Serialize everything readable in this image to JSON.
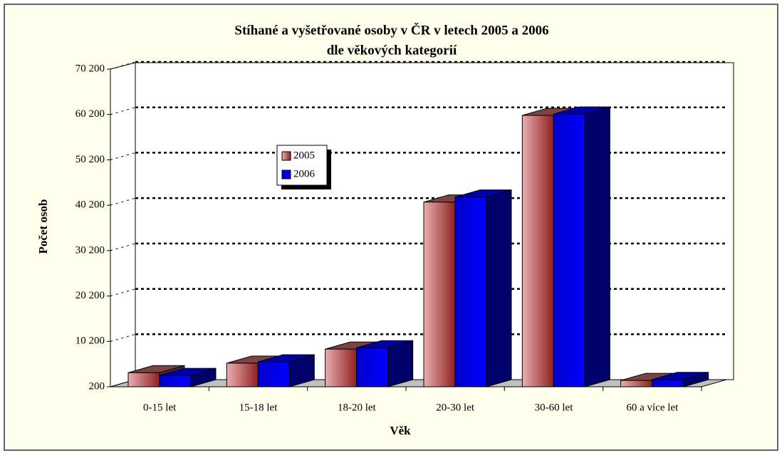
{
  "chart_data": {
    "type": "bar3d",
    "title": [
      "Stíhané a vyšetřované osoby v ČR v letech 2005 a 2006",
      "dle věkových kategorií"
    ],
    "ylabel": "Počet osob",
    "xlabel": "Věk",
    "categories": [
      "0-15 let",
      "15-18 let",
      "18-20 let",
      "20-30 let",
      "30-60 let",
      "60 a více let"
    ],
    "series": [
      {
        "name": "2005",
        "color": "#b06060",
        "values": [
          3300,
          5400,
          8500,
          40900,
          60000,
          1600
        ]
      },
      {
        "name": "2006",
        "color": "#0000ee",
        "values": [
          2700,
          5700,
          8800,
          42000,
          60300,
          1800
        ]
      }
    ],
    "ylim": [
      200,
      70200
    ],
    "yticks": [
      {
        "value": 200,
        "label": "200"
      },
      {
        "value": 10200,
        "label": "10 200"
      },
      {
        "value": 20200,
        "label": "20 200"
      },
      {
        "value": 30200,
        "label": "30 200"
      },
      {
        "value": 40200,
        "label": "40 200"
      },
      {
        "value": 50200,
        "label": "50 200"
      },
      {
        "value": 60200,
        "label": "60 200"
      },
      {
        "value": 70200,
        "label": "70 200"
      }
    ],
    "grid": true
  }
}
